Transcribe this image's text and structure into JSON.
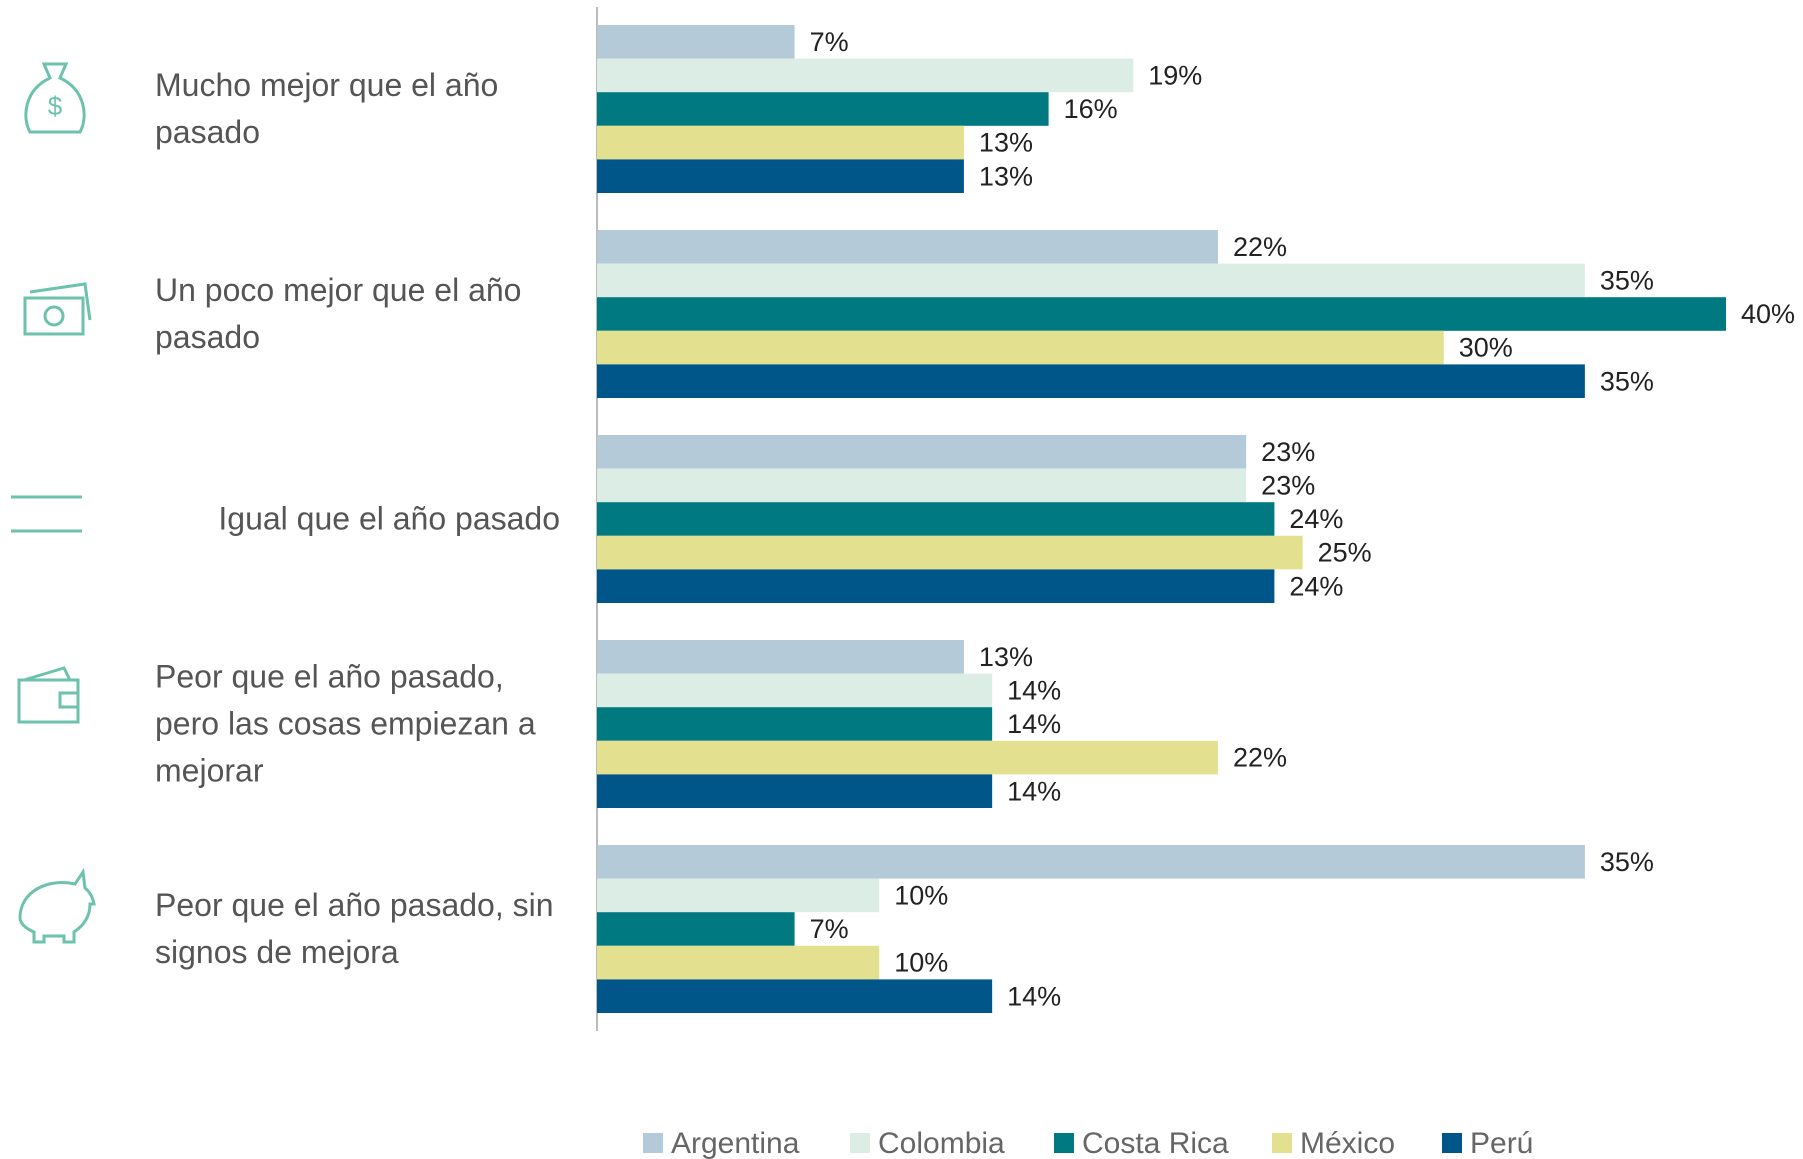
{
  "chart_data": {
    "type": "bar",
    "orientation": "horizontal",
    "categories": [
      "Mucho mejor que el año pasado",
      "Un poco mejor que el año pasado",
      "Igual que el año pasado",
      "Peor que el año pasado, pero las cosas empiezan a mejorar",
      "Peor que el año pasado, sin signos de mejora"
    ],
    "xlim": [
      0,
      40
    ],
    "series": [
      {
        "name": "Argentina",
        "color": "#b4cad9",
        "values": [
          7,
          22,
          23,
          13,
          35
        ],
        "value_labels": [
          "7%",
          "22%",
          "23%",
          "13%",
          "35%"
        ]
      },
      {
        "name": "Colombia",
        "color": "#dcede6",
        "values": [
          19,
          35,
          23,
          14,
          10
        ],
        "value_labels": [
          "19%",
          "35%",
          "23%",
          "14%",
          "10%"
        ]
      },
      {
        "name": "Costa Rica",
        "color": "#007a80",
        "values": [
          16,
          40,
          24,
          14,
          7
        ],
        "value_labels": [
          "16%",
          "40%",
          "24%",
          "14%",
          "7%"
        ]
      },
      {
        "name": "México",
        "color": "#e3e18f",
        "values": [
          13,
          30,
          25,
          22,
          10
        ],
        "value_labels": [
          "13%",
          "30%",
          "25%",
          "22%",
          "10%"
        ]
      },
      {
        "name": "Perú",
        "color": "#005689",
        "values": [
          13,
          35,
          24,
          14,
          14
        ],
        "value_labels": [
          "13%",
          "35%",
          "24%",
          "14%",
          "14%"
        ]
      }
    ],
    "legend": "bottom"
  }
}
